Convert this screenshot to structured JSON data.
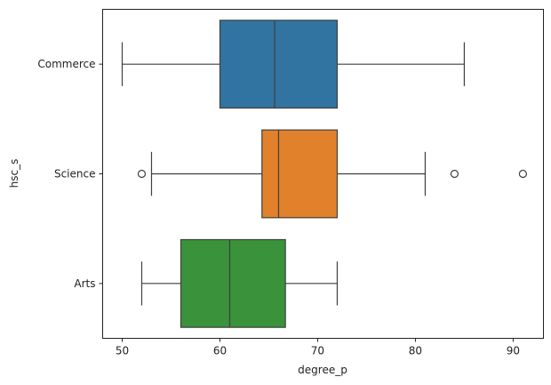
{
  "chart_data": {
    "type": "boxplot",
    "orientation": "horizontal",
    "xlabel": "degree_p",
    "ylabel": "hsc_s",
    "xlim": [
      48.0,
      93.1
    ],
    "xticks": [
      50,
      60,
      70,
      80,
      90
    ],
    "grid": false,
    "categories": [
      "Commerce",
      "Science",
      "Arts"
    ],
    "boxes": [
      {
        "category": "Commerce",
        "whisker_low": 50,
        "q1": 60,
        "median": 65.6,
        "q3": 72,
        "whisker_high": 85,
        "outliers": [],
        "color": "#3274a1"
      },
      {
        "category": "Science",
        "whisker_low": 53,
        "q1": 64.3,
        "median": 66,
        "q3": 72,
        "whisker_high": 81,
        "outliers": [
          52,
          84,
          91
        ],
        "color": "#e1812c"
      },
      {
        "category": "Arts",
        "whisker_low": 52,
        "q1": 56,
        "median": 61,
        "q3": 66.7,
        "whisker_high": 72,
        "outliers": [],
        "color": "#3a923a"
      }
    ]
  }
}
